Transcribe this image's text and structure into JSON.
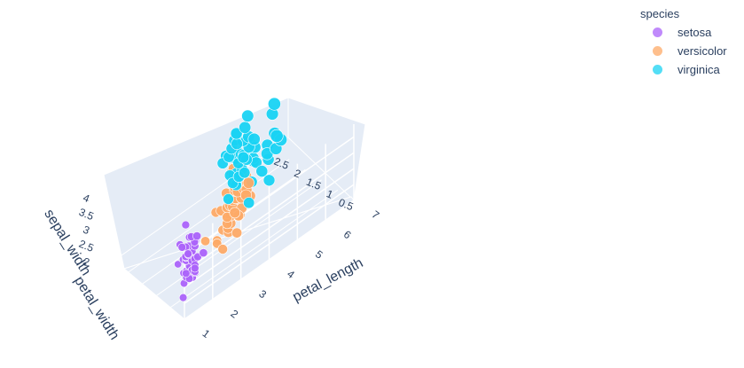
{
  "chart_data": {
    "type": "scatter3d",
    "title": "",
    "axes": {
      "x": {
        "label": "petal_length",
        "range": [
          1,
          7
        ],
        "ticks": [
          "1",
          "2",
          "3",
          "4",
          "5",
          "6",
          "7"
        ]
      },
      "y": {
        "label": "petal_width",
        "range": [
          0,
          2.5
        ],
        "ticks": [
          "0.5",
          "1",
          "1.5",
          "2",
          "2.5"
        ]
      },
      "z": {
        "label": "sepal_width",
        "range": [
          2,
          4.4
        ],
        "ticks": [
          "2",
          "2.5",
          "3",
          "3.5",
          "4"
        ]
      }
    },
    "grid": true,
    "legend": {
      "title": "species",
      "placement": "top-right"
    },
    "series": [
      {
        "name": "setosa",
        "color": "#ab63fa",
        "points": [
          [
            1.4,
            0.2,
            3.5
          ],
          [
            1.4,
            0.2,
            3.0
          ],
          [
            1.3,
            0.2,
            3.2
          ],
          [
            1.5,
            0.2,
            3.1
          ],
          [
            1.4,
            0.2,
            3.6
          ],
          [
            1.7,
            0.4,
            3.9
          ],
          [
            1.4,
            0.3,
            3.4
          ],
          [
            1.5,
            0.2,
            3.4
          ],
          [
            1.4,
            0.2,
            2.9
          ],
          [
            1.5,
            0.1,
            3.1
          ],
          [
            1.5,
            0.2,
            3.7
          ],
          [
            1.6,
            0.2,
            3.4
          ],
          [
            1.4,
            0.1,
            3.0
          ],
          [
            1.1,
            0.1,
            3.0
          ],
          [
            1.2,
            0.2,
            4.0
          ],
          [
            1.5,
            0.4,
            4.4
          ],
          [
            1.3,
            0.4,
            3.9
          ],
          [
            1.4,
            0.3,
            3.5
          ],
          [
            1.7,
            0.3,
            3.8
          ],
          [
            1.5,
            0.3,
            3.8
          ],
          [
            1.7,
            0.2,
            3.4
          ],
          [
            1.5,
            0.4,
            3.7
          ],
          [
            1.0,
            0.2,
            3.6
          ],
          [
            1.7,
            0.5,
            3.3
          ],
          [
            1.9,
            0.2,
            3.4
          ],
          [
            1.6,
            0.2,
            3.0
          ],
          [
            1.6,
            0.4,
            3.4
          ],
          [
            1.5,
            0.2,
            3.5
          ],
          [
            1.4,
            0.2,
            3.4
          ],
          [
            1.6,
            0.2,
            3.2
          ],
          [
            1.6,
            0.2,
            3.1
          ],
          [
            1.5,
            0.4,
            3.4
          ],
          [
            1.5,
            0.1,
            4.1
          ],
          [
            1.4,
            0.2,
            4.2
          ],
          [
            1.5,
            0.2,
            3.1
          ],
          [
            1.2,
            0.2,
            3.2
          ],
          [
            1.3,
            0.2,
            3.5
          ],
          [
            1.4,
            0.1,
            3.6
          ],
          [
            1.3,
            0.2,
            3.0
          ],
          [
            1.5,
            0.2,
            3.4
          ],
          [
            1.3,
            0.3,
            3.5
          ],
          [
            1.3,
            0.3,
            2.3
          ],
          [
            1.3,
            0.2,
            3.2
          ],
          [
            1.6,
            0.6,
            3.5
          ],
          [
            1.9,
            0.4,
            3.8
          ],
          [
            1.4,
            0.3,
            3.0
          ],
          [
            1.6,
            0.2,
            3.8
          ],
          [
            1.4,
            0.2,
            3.2
          ],
          [
            1.5,
            0.2,
            3.7
          ],
          [
            1.4,
            0.2,
            3.3
          ]
        ]
      },
      {
        "name": "versicolor",
        "color": "#fdaa67",
        "points": [
          [
            4.7,
            1.4,
            3.2
          ],
          [
            4.5,
            1.5,
            3.2
          ],
          [
            4.9,
            1.5,
            3.1
          ],
          [
            4.0,
            1.3,
            2.3
          ],
          [
            4.6,
            1.5,
            2.8
          ],
          [
            4.5,
            1.3,
            2.8
          ],
          [
            4.7,
            1.6,
            3.3
          ],
          [
            3.3,
            1.0,
            2.4
          ],
          [
            4.6,
            1.3,
            2.9
          ],
          [
            3.9,
            1.4,
            2.7
          ],
          [
            3.5,
            1.0,
            2.0
          ],
          [
            4.2,
            1.5,
            3.0
          ],
          [
            4.0,
            1.0,
            2.2
          ],
          [
            4.7,
            1.4,
            2.9
          ],
          [
            3.6,
            1.3,
            2.9
          ],
          [
            4.4,
            1.4,
            3.1
          ],
          [
            4.5,
            1.5,
            3.0
          ],
          [
            4.1,
            1.0,
            2.7
          ],
          [
            4.5,
            1.5,
            2.2
          ],
          [
            3.9,
            1.1,
            2.5
          ],
          [
            4.8,
            1.8,
            3.2
          ],
          [
            4.0,
            1.3,
            2.8
          ],
          [
            4.9,
            1.5,
            2.5
          ],
          [
            4.7,
            1.2,
            2.8
          ],
          [
            4.3,
            1.3,
            2.9
          ],
          [
            4.4,
            1.4,
            3.0
          ],
          [
            4.8,
            1.4,
            2.8
          ],
          [
            5.0,
            1.7,
            3.0
          ],
          [
            4.5,
            1.5,
            2.9
          ],
          [
            3.5,
            1.0,
            2.6
          ],
          [
            3.8,
            1.1,
            2.4
          ],
          [
            3.7,
            1.0,
            2.4
          ],
          [
            3.9,
            1.2,
            2.7
          ],
          [
            5.1,
            1.6,
            2.7
          ],
          [
            4.5,
            1.5,
            3.0
          ],
          [
            4.5,
            1.6,
            3.4
          ],
          [
            4.7,
            1.5,
            3.1
          ],
          [
            4.4,
            1.3,
            2.3
          ],
          [
            4.1,
            1.3,
            3.0
          ],
          [
            4.0,
            1.3,
            2.5
          ],
          [
            4.4,
            1.2,
            2.6
          ],
          [
            4.6,
            1.4,
            3.0
          ],
          [
            4.0,
            1.2,
            2.6
          ],
          [
            3.3,
            1.0,
            2.3
          ],
          [
            4.2,
            1.3,
            2.7
          ],
          [
            4.2,
            1.2,
            3.0
          ],
          [
            4.2,
            1.3,
            2.9
          ],
          [
            4.3,
            1.3,
            2.9
          ],
          [
            3.0,
            1.1,
            2.5
          ],
          [
            4.1,
            1.3,
            2.8
          ]
        ]
      },
      {
        "name": "virginica",
        "color": "#19d3f3",
        "points": [
          [
            6.0,
            2.5,
            3.3
          ],
          [
            5.1,
            1.9,
            2.7
          ],
          [
            5.9,
            2.1,
            3.0
          ],
          [
            5.6,
            1.8,
            2.9
          ],
          [
            5.8,
            2.2,
            3.0
          ],
          [
            6.6,
            2.1,
            3.0
          ],
          [
            4.5,
            1.7,
            2.5
          ],
          [
            6.3,
            1.8,
            2.9
          ],
          [
            5.8,
            1.8,
            2.5
          ],
          [
            6.1,
            2.5,
            3.6
          ],
          [
            5.1,
            2.0,
            3.2
          ],
          [
            5.3,
            1.9,
            2.7
          ],
          [
            5.5,
            2.1,
            3.0
          ],
          [
            5.0,
            2.0,
            2.5
          ],
          [
            5.1,
            2.4,
            2.8
          ],
          [
            5.3,
            2.3,
            3.2
          ],
          [
            5.5,
            1.8,
            3.0
          ],
          [
            6.7,
            2.2,
            3.8
          ],
          [
            6.9,
            2.3,
            2.6
          ],
          [
            5.0,
            1.5,
            2.2
          ],
          [
            5.7,
            2.3,
            3.2
          ],
          [
            4.9,
            2.0,
            2.8
          ],
          [
            6.7,
            2.0,
            2.8
          ],
          [
            4.9,
            1.8,
            2.7
          ],
          [
            5.7,
            2.1,
            3.3
          ],
          [
            6.0,
            1.8,
            3.2
          ],
          [
            4.8,
            1.8,
            2.8
          ],
          [
            4.9,
            1.8,
            3.0
          ],
          [
            5.6,
            2.1,
            2.8
          ],
          [
            5.8,
            1.6,
            3.0
          ],
          [
            6.1,
            1.9,
            2.8
          ],
          [
            6.4,
            2.0,
            3.8
          ],
          [
            5.6,
            2.2,
            2.8
          ],
          [
            5.1,
            1.5,
            2.8
          ],
          [
            5.6,
            1.4,
            2.6
          ],
          [
            6.1,
            2.3,
            3.0
          ],
          [
            5.6,
            2.4,
            3.4
          ],
          [
            5.5,
            1.8,
            3.1
          ],
          [
            4.8,
            1.8,
            3.0
          ],
          [
            5.4,
            2.1,
            3.1
          ],
          [
            5.6,
            2.4,
            3.1
          ],
          [
            5.1,
            2.3,
            3.1
          ],
          [
            5.1,
            1.9,
            2.7
          ],
          [
            5.9,
            2.3,
            3.2
          ],
          [
            5.7,
            2.5,
            3.3
          ],
          [
            5.2,
            2.3,
            3.0
          ],
          [
            5.0,
            1.9,
            2.5
          ],
          [
            5.2,
            2.0,
            3.0
          ],
          [
            5.4,
            2.3,
            3.4
          ],
          [
            5.1,
            1.8,
            3.0
          ]
        ]
      }
    ]
  }
}
